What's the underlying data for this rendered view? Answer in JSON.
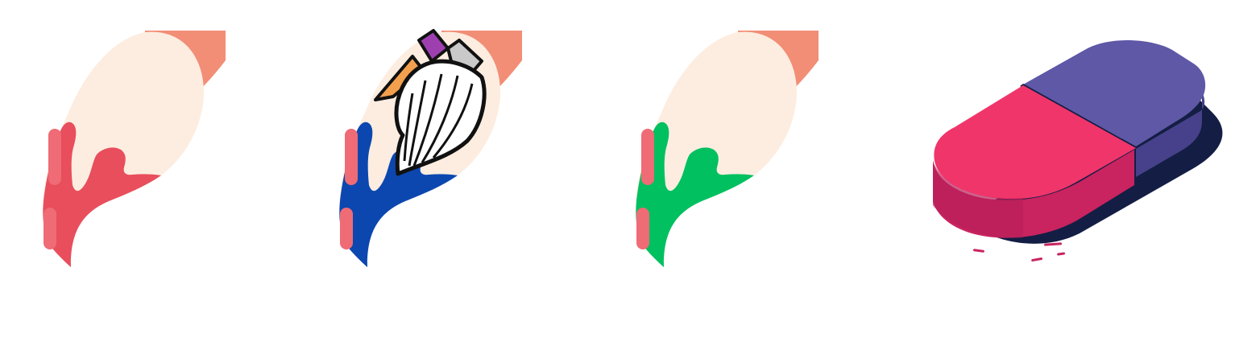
{
  "tools": [
    {
      "id": "red-paint",
      "icon": "paint-drip-red-icon",
      "paint_color": "#E84E5C",
      "highlight_color": "#EF6B75",
      "selected": false
    },
    {
      "id": "blue-paint",
      "icon": "paint-drip-blue-icon",
      "paint_color": "#0C47B0",
      "highlight_color": "#EF6B75",
      "selected": true,
      "overlay_icon": "paintbrush-icon"
    },
    {
      "id": "green-paint",
      "icon": "paint-drip-green-icon",
      "paint_color": "#00C060",
      "highlight_color": "#EF6B75",
      "selected": false
    },
    {
      "id": "eraser",
      "icon": "eraser-icon",
      "selected": false
    }
  ],
  "colors": {
    "background": "#FFFFFF",
    "drop_body": "#FDEDE0",
    "stem": "#F28E76",
    "eraser_pink": "#F0356B",
    "eraser_pink_dark": "#C92360",
    "eraser_purple": "#5E58A6",
    "eraser_purple_dark": "#46418A",
    "eraser_shadow": "#141E44"
  }
}
